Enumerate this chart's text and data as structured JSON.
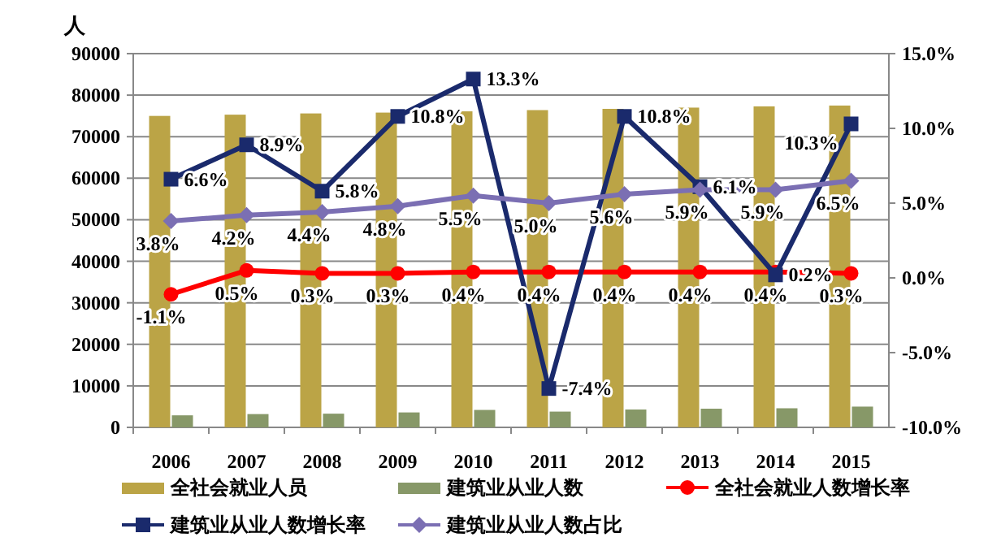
{
  "chart_data": {
    "type": "bar",
    "ylabel": "人",
    "categories": [
      "2006",
      "2007",
      "2008",
      "2009",
      "2010",
      "2011",
      "2012",
      "2013",
      "2014",
      "2015"
    ],
    "ylim": [
      0,
      90000
    ],
    "yticks": [
      0,
      10000,
      20000,
      30000,
      40000,
      50000,
      60000,
      70000,
      80000,
      90000
    ],
    "y2lim": [
      -10,
      15
    ],
    "y2ticks": [
      {
        "value": -10,
        "label": "-10.0%"
      },
      {
        "value": -5,
        "label": "-5.0%"
      },
      {
        "value": 0,
        "label": "0.0%"
      },
      {
        "value": 5,
        "label": "5.0%"
      },
      {
        "value": 10,
        "label": "10.0%"
      },
      {
        "value": 15,
        "label": "15.0%"
      }
    ],
    "grid": "y",
    "legend": "bottom",
    "series": [
      {
        "name": "全社会就业人员",
        "color": "#bba446",
        "values": [
          75000,
          75300,
          75600,
          75800,
          76100,
          76400,
          76700,
          77000,
          77300,
          77500
        ]
      },
      {
        "name": "建筑业从业人数",
        "color": "#879868",
        "values": [
          2900,
          3200,
          3300,
          3600,
          4200,
          3800,
          4300,
          4500,
          4600,
          5000
        ]
      },
      {
        "name": "全社会就业人数增长率",
        "type": "line",
        "axis": "y2",
        "marker": "circle",
        "color": "#ff0000",
        "values": [
          -1.1,
          0.5,
          0.3,
          0.3,
          0.4,
          0.4,
          0.4,
          0.4,
          0.4,
          0.3
        ],
        "value_labels": [
          "-1.1%",
          "0.5%",
          "0.3%",
          "0.3%",
          "0.4%",
          "0.4%",
          "0.4%",
          "0.4%",
          "0.4%",
          "0.3%"
        ]
      },
      {
        "name": "建筑业从业人数增长率",
        "type": "line",
        "axis": "y2",
        "marker": "square",
        "color": "#1a2a6c",
        "values": [
          6.6,
          8.9,
          5.8,
          10.8,
          13.3,
          -7.4,
          10.8,
          6.1,
          0.2,
          10.3
        ],
        "value_labels": [
          "6.6%",
          "8.9%",
          "5.8%",
          "10.8%",
          "13.3%",
          "-7.4%",
          "10.8%",
          "6.1%",
          "0.2%",
          "10.3%"
        ]
      },
      {
        "name": "建筑业从业人数占比",
        "type": "line",
        "axis": "y2",
        "marker": "diamond",
        "color": "#7b6fb3",
        "values": [
          3.8,
          4.2,
          4.4,
          4.8,
          5.5,
          5.0,
          5.6,
          5.9,
          5.9,
          6.5
        ],
        "value_labels": [
          "3.8%",
          "4.2%",
          "4.4%",
          "4.8%",
          "5.5%",
          "5.0%",
          "5.6%",
          "5.9%",
          "5.9%",
          "6.5%"
        ]
      }
    ]
  }
}
